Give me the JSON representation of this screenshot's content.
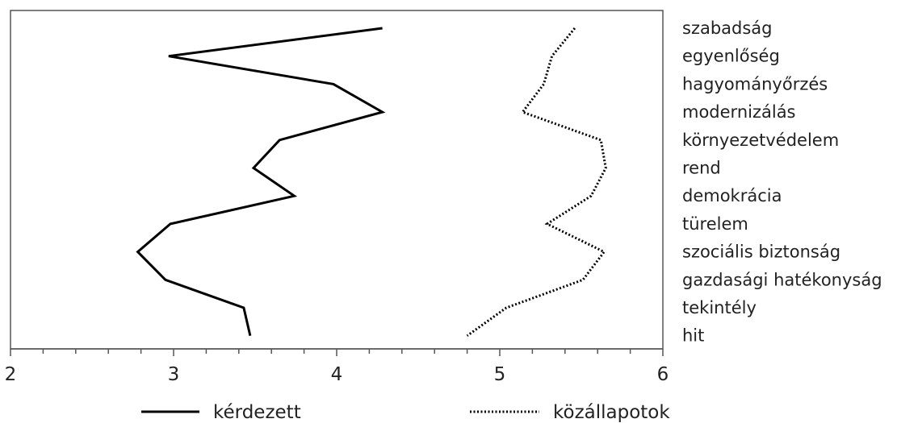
{
  "chart_data": {
    "type": "line",
    "title": "",
    "xlabel": "",
    "ylabel": "",
    "xlim": [
      2,
      6
    ],
    "x_ticks": [
      "2",
      "3",
      "4",
      "5",
      "6"
    ],
    "categories": [
      "szabadság",
      "egyenlőség",
      "hagyományőrzés",
      "modernizálás",
      "környezetvédelem",
      "rend",
      "demokrácia",
      "türelem",
      "szociális biztonság",
      "gazdasági hatékonyság",
      "tekintély",
      "hit"
    ],
    "legend_position": "bottom",
    "series": [
      {
        "name": "kérdezett",
        "style": "solid",
        "color": "#000000",
        "values": [
          4.28,
          2.97,
          3.98,
          4.28,
          3.65,
          3.49,
          3.74,
          2.98,
          2.78,
          2.95,
          3.43,
          3.47
        ]
      },
      {
        "name": "közállapotok",
        "style": "dotted",
        "color": "#000000",
        "values": [
          5.46,
          5.32,
          5.27,
          5.14,
          5.62,
          5.65,
          5.56,
          5.29,
          5.64,
          5.51,
          5.04,
          4.8
        ]
      }
    ]
  }
}
